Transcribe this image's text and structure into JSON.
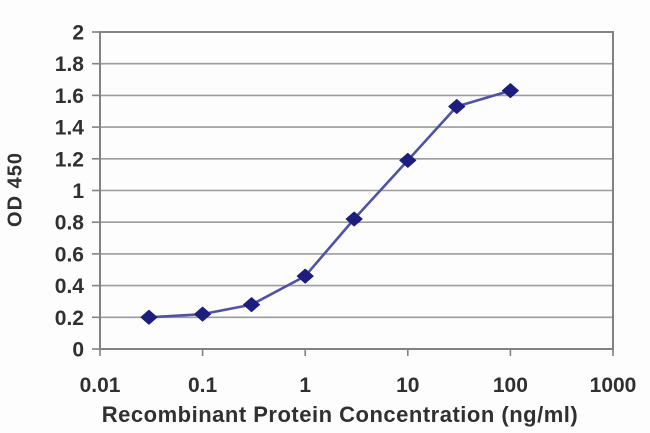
{
  "chart_data": {
    "type": "line",
    "title": "",
    "xlabel": "Recombinant Protein Concentration (ng/ml)",
    "ylabel": "OD 450",
    "x_scale": "log",
    "xlim": [
      0.01,
      1000
    ],
    "ylim": [
      0,
      2
    ],
    "x": [
      0.03,
      0.1,
      0.3,
      1,
      3,
      10,
      30,
      100
    ],
    "series": [
      {
        "name": "OD 450",
        "values": [
          0.2,
          0.22,
          0.28,
          0.46,
          0.82,
          1.19,
          1.53,
          1.63
        ]
      }
    ],
    "x_tick_labels": [
      "0.01",
      "0.1",
      "1",
      "10",
      "100",
      "1000"
    ],
    "y_tick_labels": [
      "0",
      "0.2",
      "0.4",
      "0.6",
      "0.8",
      "1",
      "1.2",
      "1.4",
      "1.6",
      "1.8",
      "2"
    ],
    "grid": "horizontal",
    "legend": "none",
    "marker_shape": "diamond",
    "colors": {
      "line": "#4f52a5",
      "marker": "#1c1d7d",
      "grid": "#9c9c9c",
      "frame": "#828282",
      "text": "#303030"
    }
  }
}
